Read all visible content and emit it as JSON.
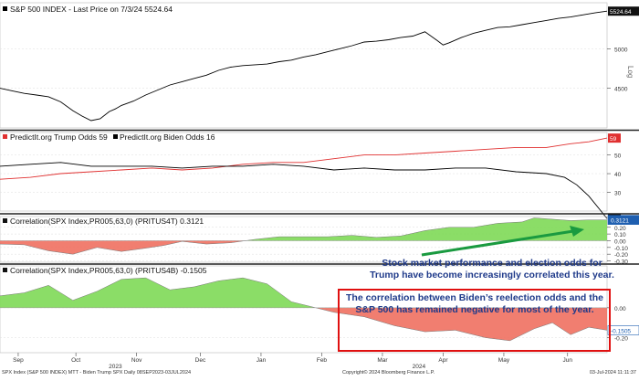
{
  "chart_data": [
    {
      "type": "line",
      "title": "S&P 500 INDEX - Last Price on 7/3/24 5524.64",
      "legend": "S&P 500 INDEX - Last Price on 7/3/24 5524.64",
      "scale": "log",
      "scale_label": "Log",
      "ylim": [
        4050,
        5650
      ],
      "yticks": [
        "5000",
        "4500"
      ],
      "last_value_label": "5524.64",
      "series": [
        {
          "color": "#000000",
          "x": [
            0,
            0.02,
            0.04,
            0.06,
            0.08,
            0.1,
            0.12,
            0.135,
            0.15,
            0.165,
            0.18,
            0.19,
            0.2,
            0.22,
            0.24,
            0.26,
            0.28,
            0.3,
            0.32,
            0.34,
            0.36,
            0.38,
            0.4,
            0.42,
            0.44,
            0.46,
            0.48,
            0.5,
            0.52,
            0.54,
            0.56,
            0.58,
            0.6,
            0.62,
            0.64,
            0.66,
            0.68,
            0.7,
            0.72,
            0.73,
            0.74,
            0.76,
            0.78,
            0.8,
            0.82,
            0.84,
            0.86,
            0.88,
            0.9,
            0.92,
            0.94,
            0.96,
            0.98,
            1
          ],
          "values": [
            4500,
            4470,
            4440,
            4420,
            4400,
            4340,
            4240,
            4180,
            4130,
            4150,
            4230,
            4260,
            4300,
            4350,
            4420,
            4480,
            4540,
            4580,
            4620,
            4660,
            4720,
            4760,
            4780,
            4790,
            4800,
            4830,
            4850,
            4890,
            4920,
            4960,
            5000,
            5040,
            5090,
            5100,
            5120,
            5150,
            5170,
            5230,
            5110,
            5050,
            5080,
            5150,
            5210,
            5250,
            5290,
            5300,
            5330,
            5360,
            5390,
            5420,
            5440,
            5470,
            5500,
            5525
          ]
        }
      ]
    },
    {
      "type": "line",
      "legend": [
        {
          "name": "PredictIt.org Trump Odds 59",
          "color": "#e03030"
        },
        {
          "name": "PredictIt.org Biden Odds 16",
          "color": "#000000"
        }
      ],
      "ylim": [
        20,
        62
      ],
      "yticks": [
        "50",
        "40",
        "30"
      ],
      "last_value_labels": [
        "59",
        "16"
      ],
      "series": [
        {
          "name": "PredictIt.org Trump Odds 59",
          "color": "#e03030",
          "x": [
            0,
            0.05,
            0.1,
            0.15,
            0.2,
            0.25,
            0.3,
            0.35,
            0.4,
            0.45,
            0.5,
            0.55,
            0.6,
            0.65,
            0.7,
            0.75,
            0.8,
            0.85,
            0.9,
            0.94,
            0.97,
            1
          ],
          "values": [
            37,
            38,
            40,
            41,
            42,
            43,
            42,
            43,
            45,
            46,
            46,
            48,
            50,
            50,
            51,
            52,
            53,
            54,
            54,
            56,
            57,
            59
          ]
        },
        {
          "name": "PredictIt.org Biden Odds 16",
          "color": "#000000",
          "x": [
            0,
            0.05,
            0.1,
            0.15,
            0.2,
            0.25,
            0.3,
            0.35,
            0.4,
            0.45,
            0.5,
            0.55,
            0.6,
            0.65,
            0.7,
            0.75,
            0.8,
            0.85,
            0.9,
            0.93,
            0.95,
            0.97,
            0.99,
            1
          ],
          "values": [
            44,
            45,
            46,
            44,
            44,
            44,
            43,
            44,
            44,
            45,
            44,
            42,
            43,
            42,
            42,
            43,
            43,
            41,
            40,
            38,
            34,
            28,
            20,
            16
          ]
        }
      ]
    },
    {
      "type": "area",
      "title": "Correlation(SPX Index,PR005,63,0) (PRITUS4T) 0.3121",
      "ylim": [
        -0.32,
        0.36
      ],
      "yticks": [
        "0.20",
        "0.10",
        "0.00",
        "-0.10",
        "-0.20",
        "-0.30"
      ],
      "last_value_label": "0.3121",
      "positive_color": "#7ed957",
      "negative_color": "#f07060",
      "series": [
        {
          "name": "Correlation(SPX Index,PR005,63,0) (PRITUS4T) 0.3121",
          "x": [
            0,
            0.04,
            0.08,
            0.12,
            0.16,
            0.2,
            0.24,
            0.27,
            0.3,
            0.34,
            0.38,
            0.42,
            0.46,
            0.5,
            0.54,
            0.58,
            0.62,
            0.66,
            0.7,
            0.74,
            0.78,
            0.82,
            0.86,
            0.88,
            0.91,
            0.94,
            0.97,
            1
          ],
          "values": [
            -0.05,
            -0.06,
            -0.15,
            -0.2,
            -0.1,
            -0.16,
            -0.11,
            -0.07,
            -0.01,
            -0.05,
            -0.03,
            0.02,
            0.06,
            0.06,
            0.06,
            0.08,
            0.05,
            0.07,
            0.15,
            0.2,
            0.2,
            0.26,
            0.28,
            0.34,
            0.32,
            0.3,
            0.31,
            0.31
          ]
        }
      ]
    },
    {
      "type": "area",
      "title": "Correlation(SPX Index,PR005,63,0) (PRITUS4B) -0.1505",
      "ylim": [
        -0.3,
        0.28
      ],
      "yticks": [
        "0.00",
        "-0.20"
      ],
      "last_value_label": "-0.1505",
      "positive_color": "#7ed957",
      "negative_color": "#f07060",
      "series": [
        {
          "name": "Correlation(SPX Index,PR005,63,0) (PRITUS4B) -0.1505",
          "x": [
            0,
            0.04,
            0.08,
            0.12,
            0.16,
            0.2,
            0.24,
            0.28,
            0.32,
            0.36,
            0.4,
            0.44,
            0.48,
            0.51,
            0.55,
            0.6,
            0.65,
            0.7,
            0.75,
            0.8,
            0.84,
            0.88,
            0.91,
            0.94,
            0.97,
            1
          ],
          "values": [
            0.08,
            0.1,
            0.15,
            0.05,
            0.11,
            0.19,
            0.2,
            0.12,
            0.14,
            0.18,
            0.2,
            0.16,
            0.04,
            0.01,
            -0.03,
            -0.06,
            -0.12,
            -0.16,
            -0.15,
            -0.2,
            -0.22,
            -0.14,
            -0.1,
            -0.18,
            -0.13,
            -0.15
          ]
        }
      ]
    }
  ],
  "x_axis": {
    "months": [
      "Sep",
      "Oct",
      "Nov",
      "Dec",
      "Jan",
      "Feb",
      "Mar",
      "Apr",
      "May",
      "Jun"
    ],
    "years": [
      "2023",
      "2024"
    ]
  },
  "annotations": {
    "trump_line1": "Stock market performance and election odds for",
    "trump_line2": "Trump have become increasingly correlated this year.",
    "biden_line1": "The correlation between Biden’s reelection odds and the",
    "biden_line2": "S&P 500 has remained negative for most of the year."
  },
  "footer": {
    "left": "SPX Index (S&P 500 INDEX) MTT - Biden Trump SPX  Daily 08SEP2023-03JUL2024",
    "center": "Copyright© 2024 Bloomberg Finance L.P.",
    "right": "03-Jul-2024 11:11:37"
  }
}
